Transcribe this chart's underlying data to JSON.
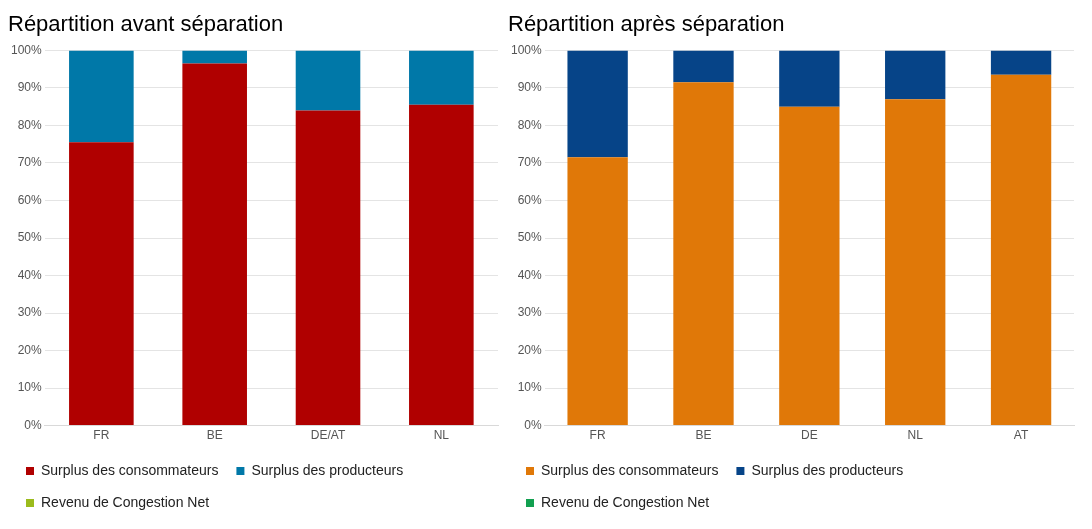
{
  "chart_data": [
    {
      "type": "bar",
      "title": "Répartition avant séparation",
      "categories": [
        "FR",
        "BE",
        "DE/AT",
        "NL"
      ],
      "stacked": true,
      "ylim": [
        0,
        100
      ],
      "yticks": [
        {
          "value": 0,
          "label": "0%"
        },
        {
          "value": 10,
          "label": "10%"
        },
        {
          "value": 20,
          "label": "20%"
        },
        {
          "value": 30,
          "label": "30%"
        },
        {
          "value": 40,
          "label": "40%"
        },
        {
          "value": 50,
          "label": "50%"
        },
        {
          "value": 60,
          "label": "60%"
        },
        {
          "value": 70,
          "label": "70%"
        },
        {
          "value": 80,
          "label": "80%"
        },
        {
          "value": 90,
          "label": "90%"
        },
        {
          "value": 100,
          "label": "100%"
        }
      ],
      "grid": "y",
      "legend": "bottom",
      "series": [
        {
          "name": "Surplus des consommateurs",
          "color": "#b00000",
          "values": [
            75.5,
            96.5,
            84,
            85.5
          ]
        },
        {
          "name": "Surplus des producteurs",
          "color": "#0078a8",
          "values": [
            24.5,
            3.5,
            16,
            14.5
          ]
        },
        {
          "name": "Revenu de Congestion Net",
          "color": "#9bbb1c",
          "values": [
            0,
            0,
            0,
            0
          ]
        }
      ]
    },
    {
      "type": "bar",
      "title": "Répartition après séparation",
      "categories": [
        "FR",
        "BE",
        "DE",
        "NL",
        "AT"
      ],
      "stacked": true,
      "ylim": [
        0,
        100
      ],
      "yticks": [
        {
          "value": 0,
          "label": "0%"
        },
        {
          "value": 10,
          "label": "10%"
        },
        {
          "value": 20,
          "label": "20%"
        },
        {
          "value": 30,
          "label": "30%"
        },
        {
          "value": 40,
          "label": "40%"
        },
        {
          "value": 50,
          "label": "50%"
        },
        {
          "value": 60,
          "label": "60%"
        },
        {
          "value": 70,
          "label": "70%"
        },
        {
          "value": 80,
          "label": "80%"
        },
        {
          "value": 90,
          "label": "90%"
        },
        {
          "value": 100,
          "label": "100%"
        }
      ],
      "grid": "y",
      "legend": "bottom",
      "series": [
        {
          "name": "Surplus des consommateurs",
          "color": "#e07808",
          "values": [
            71.5,
            91.5,
            85,
            87,
            93.5
          ]
        },
        {
          "name": "Surplus des producteurs",
          "color": "#064488",
          "values": [
            28.5,
            8.5,
            15,
            13,
            6.5
          ]
        },
        {
          "name": "Revenu de Congestion Net",
          "color": "#12a050",
          "values": [
            0,
            0,
            0,
            0,
            0
          ]
        }
      ]
    }
  ]
}
